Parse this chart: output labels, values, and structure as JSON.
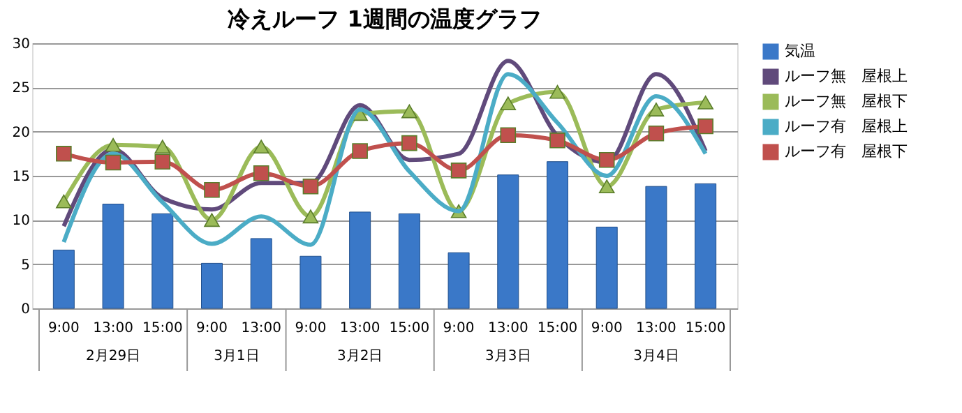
{
  "chart_data": {
    "type": "bar",
    "title": "冷えルーフ 1週間の温度グラフ",
    "categories": [
      "9:00",
      "13:00",
      "15:00",
      "9:00",
      "13:00",
      "9:00",
      "13:00",
      "15:00",
      "9:00",
      "13:00",
      "15:00",
      "9:00",
      "13:00",
      "15:00"
    ],
    "annotations": [
      "2月29日",
      "3月1日",
      "3月2日",
      "3月3日",
      "3月4日"
    ],
    "ylim": [
      0,
      30
    ],
    "yticks": [
      0,
      5,
      10,
      15,
      20,
      25,
      30
    ],
    "grid": "y",
    "legend": "right",
    "series": [
      {
        "name": "気温",
        "color": "#3a78c8",
        "values": [
          6.6,
          11.8,
          10.7,
          5.1,
          7.9,
          5.9,
          10.9,
          10.7,
          6.3,
          15.1,
          16.6,
          9.2,
          13.8,
          14.1
        ]
      },
      {
        "name": "ルーフ無　屋根上",
        "type": "line",
        "color": "#604a7b",
        "marker": "none",
        "values": [
          9.3,
          18.0,
          12.5,
          11.2,
          14.2,
          14.2,
          23.0,
          16.8,
          17.5,
          28.0,
          19.5,
          16.5,
          26.5,
          17.8
        ]
      },
      {
        "name": "ルーフ無　屋根下",
        "type": "line",
        "color": "#9bbb59",
        "marker": "triangle",
        "values": [
          12.1,
          18.5,
          18.3,
          10.0,
          18.3,
          10.4,
          22.0,
          22.3,
          11.0,
          23.2,
          24.5,
          13.8,
          22.5,
          23.3
        ]
      },
      {
        "name": "ルーフ有　屋根上",
        "type": "line",
        "color": "#4bacc6",
        "marker": "none",
        "values": [
          7.5,
          17.5,
          12.0,
          7.3,
          10.4,
          7.2,
          22.5,
          15.5,
          11.0,
          26.5,
          21.0,
          15.0,
          24.0,
          17.5
        ]
      },
      {
        "name": "ルーフ有　屋根下",
        "type": "line",
        "color": "#c0504d",
        "marker": "square",
        "values": [
          17.5,
          16.5,
          16.6,
          13.4,
          15.3,
          13.8,
          17.8,
          18.7,
          15.6,
          19.6,
          19.0,
          16.8,
          19.8,
          20.6
        ]
      }
    ]
  }
}
